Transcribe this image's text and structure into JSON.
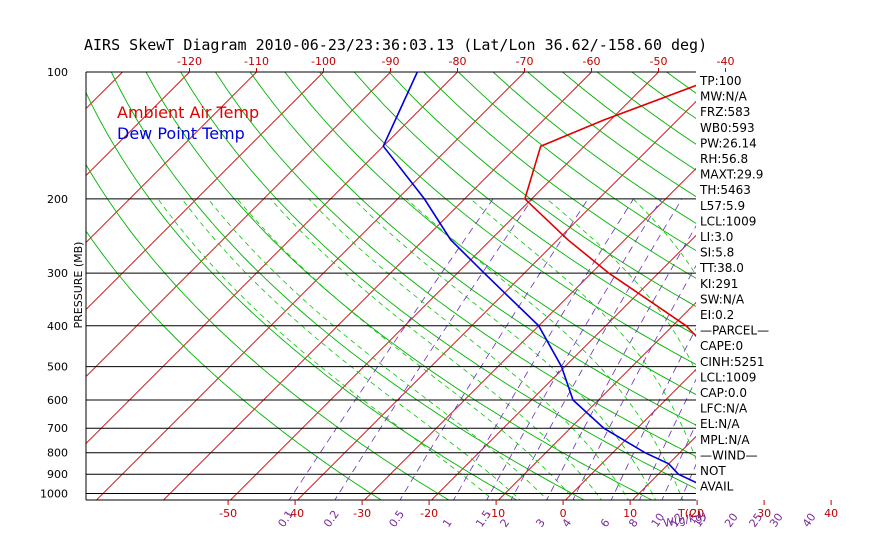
{
  "chart_data": {
    "type": "line",
    "title": "AIRS SkewT Diagram 2010-06-23/23:36:03.13 (Lat/Lon 36.62/-158.60 deg)",
    "ylabel": "PRESSURE (MB)",
    "xlabel_bottom": "T(C)",
    "mixing_ratio_label": "W(g/kg)",
    "y_scale": "log",
    "ylim": [
      1050,
      100
    ],
    "pressure_ticks": [
      100,
      200,
      300,
      400,
      500,
      600,
      700,
      800,
      900,
      1000
    ],
    "bottom_temp_ticks": [
      -50,
      -40,
      -30,
      -20,
      -10,
      0,
      10,
      20,
      30,
      40
    ],
    "top_temp_ticks": [
      -120,
      -110,
      -100,
      -90,
      -80,
      -70,
      -60,
      -50,
      -40
    ],
    "mixing_ratio_ticks": [
      "0.1",
      "0.2",
      "0.5",
      "1",
      "1.5",
      "2",
      "3",
      "4",
      "6",
      "8",
      "10",
      "12",
      "15",
      "20",
      "25",
      "30",
      "40"
    ],
    "legend": [
      {
        "label": "Ambient Air Temp",
        "color": "#e00000"
      },
      {
        "label": "Dew Point Temp",
        "color": "#0000e0"
      }
    ],
    "series": [
      {
        "name": "Ambient Air Temp",
        "color": "#e00000",
        "points": [
          [
            1000,
            21.2
          ],
          [
            950,
            21.6
          ],
          [
            900,
            21.0
          ],
          [
            850,
            19.8
          ],
          [
            800,
            18.4
          ],
          [
            700,
            15.2
          ],
          [
            600,
            10.6
          ],
          [
            500,
            4.0
          ],
          [
            400,
            -8.0
          ],
          [
            300,
            -27.4
          ],
          [
            250,
            -38.5
          ],
          [
            200,
            -51.0
          ],
          [
            150,
            -56.5
          ],
          [
            130,
            -51.0
          ],
          [
            100,
            -39.0
          ]
        ]
      },
      {
        "name": "Dew Point Temp",
        "color": "#0000e0",
        "points": [
          [
            1000,
            20.2
          ],
          [
            950,
            17.6
          ],
          [
            900,
            13.0
          ],
          [
            850,
            10.0
          ],
          [
            800,
            4.8
          ],
          [
            700,
            -5.0
          ],
          [
            600,
            -13.8
          ],
          [
            500,
            -20.5
          ],
          [
            400,
            -30.0
          ],
          [
            300,
            -46.0
          ],
          [
            250,
            -56.0
          ],
          [
            200,
            -66.0
          ],
          [
            150,
            -80.0
          ],
          [
            100,
            -86.0
          ]
        ]
      }
    ],
    "index_box": [
      "TP:100",
      "MW:N/A",
      "FRZ:583",
      "WB0:593",
      "PW:26.14",
      "RH:56.8",
      "MAXT:29.9",
      "TH:5463",
      "L57:5.9",
      "LCL:1009",
      "LI:3.0",
      "SI:5.8",
      "TT:38.0",
      "KI:291",
      "SW:N/A",
      "EI:0.2",
      "—PARCEL—",
      "CAPE:0",
      "CINH:5251",
      "LCL:1009",
      "CAP:0.0",
      "LFC:N/A",
      "EL:N/A",
      "MPL:N/A",
      "—WIND—",
      "NOT",
      "AVAIL"
    ],
    "grid": true
  },
  "colors": {
    "isotherm": "#d00000",
    "dry_adiabat": "#00b400",
    "moist_adiabat": "#00c800",
    "mixing_ratio": "#6a2cc0",
    "isobar": "#000000",
    "axis_label": "#c00000",
    "mix_label": "#7a2a9a"
  }
}
